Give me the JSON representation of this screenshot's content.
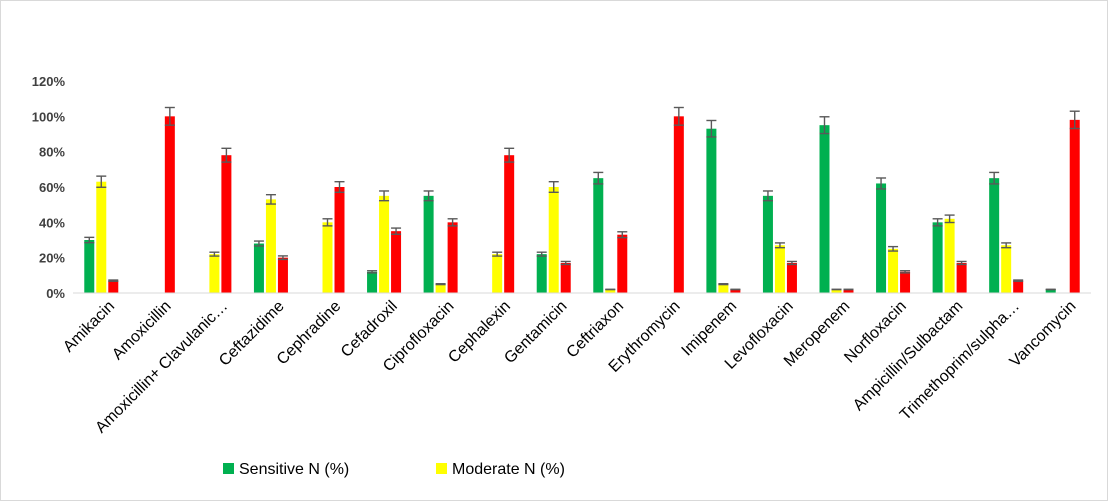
{
  "chart_data": {
    "type": "bar",
    "title": "",
    "xlabel": "",
    "ylabel": "",
    "ylim": [
      0,
      120
    ],
    "y_tick_step": 20,
    "y_tick_suffix": "%",
    "grid": false,
    "legend_position": "bottom",
    "categories": [
      "Amikacin",
      "Amoxicillin",
      "Amoxicillin+ Clavulanic…",
      "Ceftazidime",
      "Cephradine",
      "Cefadroxil",
      "Ciprofloxacin",
      "Cephalexin",
      "Gentamicin",
      "Ceftriaxon",
      "Erythromycin",
      "Imipenem",
      "Levofloxacin",
      "Meropenem",
      "Norfloxacin",
      "Ampicillin/Sulbactam",
      "Trimethoprim/sulpha…",
      "Vancomycin"
    ],
    "series": [
      {
        "name": "Sensitive N (%)",
        "color": "#00b050",
        "legend": true,
        "values": [
          30,
          0,
          0,
          28,
          0,
          12,
          55,
          0,
          22,
          65,
          0,
          93,
          55,
          95,
          62,
          40,
          65,
          2
        ]
      },
      {
        "name": "Moderate N (%)",
        "color": "#ffff00",
        "legend": true,
        "values": [
          63,
          0,
          22,
          53,
          40,
          55,
          5,
          22,
          60,
          2,
          0,
          5,
          27,
          2,
          25,
          42,
          27,
          0
        ]
      },
      {
        "name": "",
        "color": "#ff0000",
        "legend": false,
        "values": [
          7,
          100,
          78,
          20,
          60,
          35,
          40,
          78,
          17,
          33,
          100,
          2,
          17,
          2,
          12,
          17,
          7,
          98
        ]
      }
    ],
    "error_bars": "5% of value"
  }
}
